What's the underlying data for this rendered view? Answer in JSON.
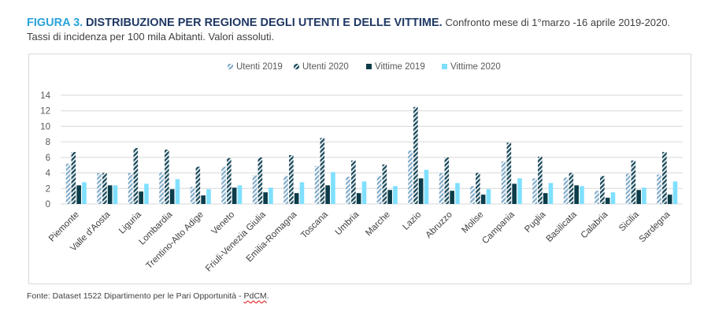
{
  "header": {
    "fig_label": "FIGURA 3.",
    "title": "DISTRIBUZIONE PER REGIONE DEGLI UTENTI E DELLE VITTIME.",
    "subtitle_inline": "Confronto mese di 1°marzo -16 aprile 2019-2020.",
    "subtitle_line2": "Tassi di incidenza per 100 mila Abitanti. Valori assoluti."
  },
  "footer": {
    "source_prefix": "Fonte: Dataset 1522 Dipartimento per le Pari Opportunità - ",
    "source_org": "PdCM",
    "source_suffix": "."
  },
  "colors": {
    "fig_label": "#2AA3D9",
    "title": "#1F3864",
    "utenti_2019": "#7FA9C9",
    "utenti_2020": "#1F4E5F",
    "vittime_2019": "#0B3C49",
    "vittime_2020": "#7FDFFF"
  },
  "chart_data": {
    "type": "bar",
    "ylim": [
      0,
      14
    ],
    "yticks": [
      "0",
      "2",
      "4",
      "6",
      "8",
      "10",
      "12",
      "14"
    ],
    "legend_position": "top-center",
    "grid": true,
    "categories": [
      "Piemonte",
      "Valle d'Aosta",
      "Liguria",
      "Lombardia",
      "Trentino-Alto Adige",
      "Veneto",
      "Friuli-Venezia Giulia",
      "Emilia-Romagna",
      "Toscana",
      "Umbria",
      "Marche",
      "Lazio",
      "Abruzzo",
      "Molise",
      "Campania",
      "Puglia",
      "Basilicata",
      "Calabria",
      "Sicilia",
      "Sardegna"
    ],
    "series": [
      {
        "name": "Utenti 2019",
        "pattern": "hatch-light",
        "values": [
          5.2,
          4.0,
          4.0,
          4.1,
          2.2,
          4.8,
          3.7,
          3.6,
          4.9,
          3.5,
          3.6,
          6.9,
          4.0,
          2.3,
          5.5,
          3.3,
          3.4,
          1.7,
          3.9,
          3.8
        ]
      },
      {
        "name": "Utenti 2020",
        "pattern": "hatch-dark",
        "values": [
          6.7,
          4.0,
          7.2,
          7.0,
          4.8,
          5.9,
          6.0,
          6.3,
          8.5,
          5.6,
          5.1,
          12.5,
          6.0,
          4.0,
          7.9,
          6.1,
          4.0,
          3.6,
          5.6,
          6.7
        ]
      },
      {
        "name": "Vittime 2019",
        "pattern": "solid",
        "values": [
          2.4,
          2.4,
          1.6,
          1.9,
          1.1,
          2.1,
          1.5,
          1.4,
          2.4,
          1.4,
          1.8,
          3.3,
          1.7,
          1.2,
          2.6,
          1.4,
          2.4,
          0.8,
          1.8,
          1.2
        ]
      },
      {
        "name": "Vittime 2020",
        "pattern": "solid",
        "values": [
          2.8,
          2.4,
          2.6,
          3.2,
          1.9,
          2.4,
          2.1,
          2.8,
          4.1,
          2.9,
          2.3,
          4.4,
          2.7,
          1.9,
          3.3,
          2.7,
          2.3,
          1.5,
          2.1,
          2.9
        ]
      }
    ]
  }
}
